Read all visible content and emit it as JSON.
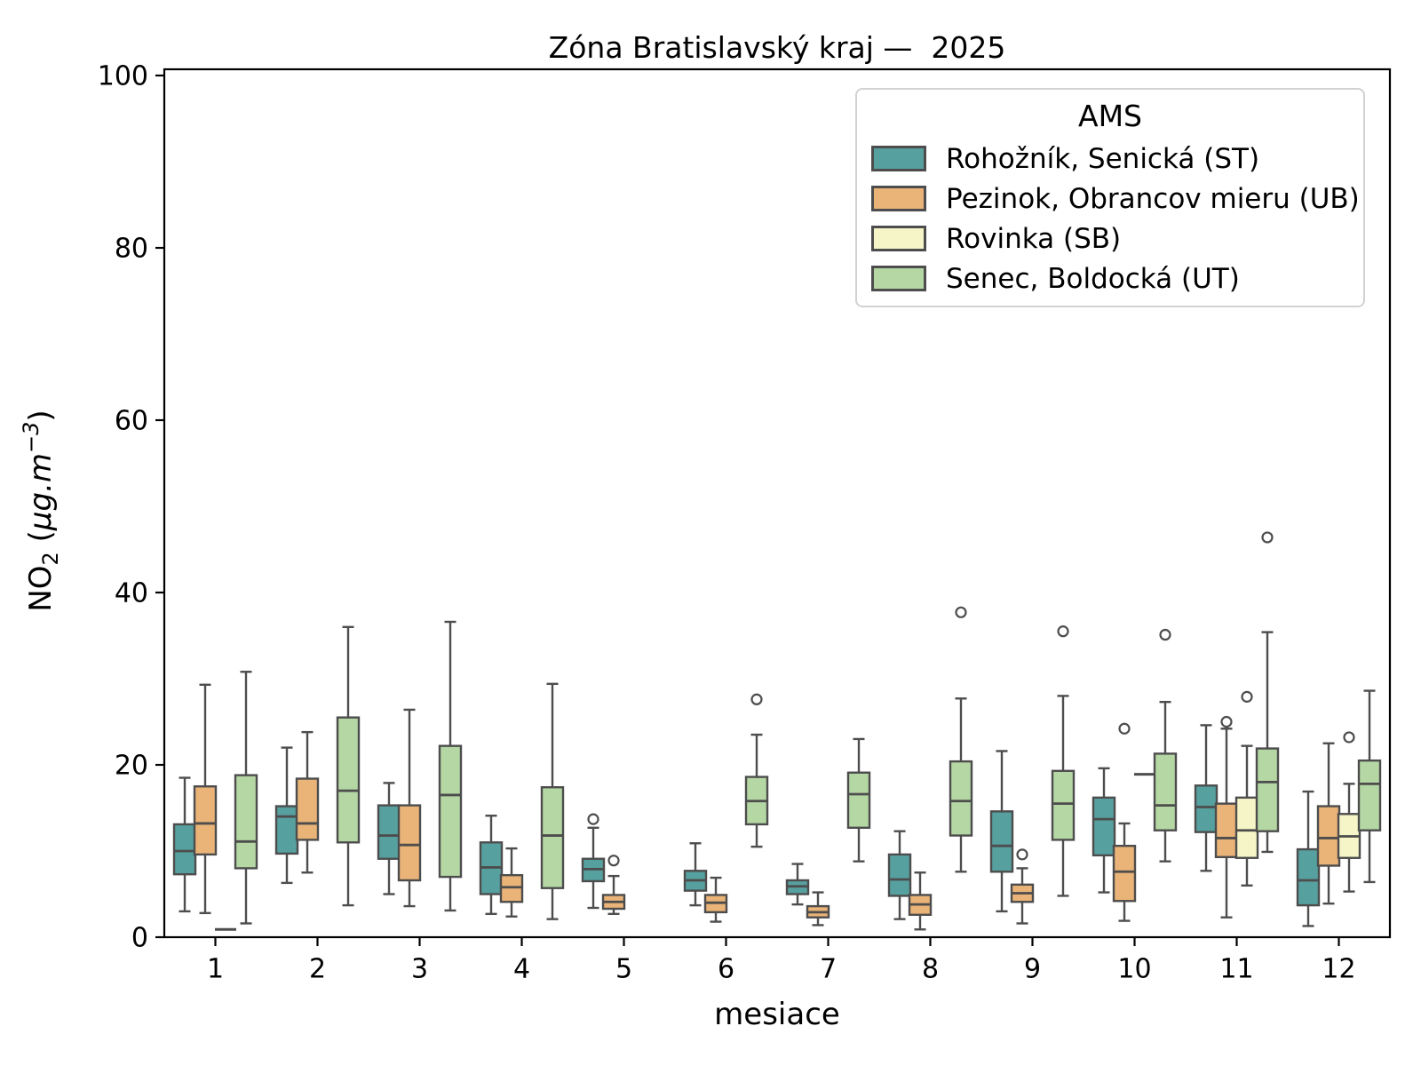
{
  "chart_data": {
    "type": "boxplot",
    "title": "Zóna Bratislavský kraj —  2025",
    "xlabel": "mesiace",
    "ylabel": "NO₂  (μg.m⁻³)",
    "ylabel_parts": {
      "prefix": "NO",
      "sub": "2",
      "open": "  (",
      "unit": "μg.m",
      "sup": "−3",
      "close": ")"
    },
    "ylim": [
      0,
      100
    ],
    "yticks": [
      0,
      20,
      40,
      60,
      80,
      100
    ],
    "categories": [
      "1",
      "2",
      "3",
      "4",
      "5",
      "6",
      "7",
      "8",
      "9",
      "10",
      "11",
      "12"
    ],
    "grid": false,
    "legend": {
      "title": "AMS",
      "position": "upper right"
    },
    "edge_color": "#4d4d4d",
    "series": [
      {
        "name": "Rohožník, Senická (ST)",
        "color": "#57a0a0",
        "boxes": [
          {
            "month": 1,
            "whislo": 3.0,
            "q1": 7.3,
            "med": 10.0,
            "q3": 13.1,
            "whishi": 18.5,
            "fliers": []
          },
          {
            "month": 2,
            "whislo": 6.3,
            "q1": 9.7,
            "med": 14.0,
            "q3": 15.2,
            "whishi": 22.0,
            "fliers": []
          },
          {
            "month": 3,
            "whislo": 5.0,
            "q1": 9.1,
            "med": 11.8,
            "q3": 15.3,
            "whishi": 17.9,
            "fliers": []
          },
          {
            "month": 4,
            "whislo": 2.7,
            "q1": 5.0,
            "med": 8.1,
            "q3": 11.0,
            "whishi": 14.1,
            "fliers": []
          },
          {
            "month": 5,
            "whislo": 3.4,
            "q1": 6.5,
            "med": 7.9,
            "q3": 9.1,
            "whishi": 12.7,
            "fliers": [
              13.7
            ]
          },
          {
            "month": 6,
            "whislo": 3.7,
            "q1": 5.4,
            "med": 6.6,
            "q3": 7.7,
            "whishi": 10.9,
            "fliers": []
          },
          {
            "month": 7,
            "whislo": 3.8,
            "q1": 5.0,
            "med": 5.9,
            "q3": 6.6,
            "whishi": 8.5,
            "fliers": []
          },
          {
            "month": 8,
            "whislo": 2.1,
            "q1": 4.8,
            "med": 6.7,
            "q3": 9.6,
            "whishi": 12.3,
            "fliers": []
          },
          {
            "month": 9,
            "whislo": 3.0,
            "q1": 7.6,
            "med": 10.6,
            "q3": 14.6,
            "whishi": 21.6,
            "fliers": []
          },
          {
            "month": 10,
            "whislo": 5.2,
            "q1": 9.5,
            "med": 13.7,
            "q3": 16.2,
            "whishi": 19.6,
            "fliers": []
          },
          {
            "month": 11,
            "whislo": 7.7,
            "q1": 12.2,
            "med": 15.1,
            "q3": 17.6,
            "whishi": 24.6,
            "fliers": []
          },
          {
            "month": 12,
            "whislo": 1.3,
            "q1": 3.7,
            "med": 6.6,
            "q3": 10.2,
            "whishi": 16.9,
            "fliers": []
          }
        ]
      },
      {
        "name": "Pezinok, Obrancov mieru (UB)",
        "color": "#eab377",
        "boxes": [
          {
            "month": 1,
            "whislo": 2.8,
            "q1": 9.6,
            "med": 13.2,
            "q3": 17.5,
            "whishi": 29.3,
            "fliers": []
          },
          {
            "month": 2,
            "whislo": 7.5,
            "q1": 11.3,
            "med": 13.2,
            "q3": 18.4,
            "whishi": 23.8,
            "fliers": []
          },
          {
            "month": 3,
            "whislo": 3.6,
            "q1": 6.6,
            "med": 10.7,
            "q3": 15.3,
            "whishi": 26.4,
            "fliers": []
          },
          {
            "month": 4,
            "whislo": 2.4,
            "q1": 4.1,
            "med": 5.8,
            "q3": 7.2,
            "whishi": 10.3,
            "fliers": []
          },
          {
            "month": 5,
            "whislo": 2.7,
            "q1": 3.3,
            "med": 4.1,
            "q3": 4.9,
            "whishi": 7.1,
            "fliers": [
              8.9
            ]
          },
          {
            "month": 6,
            "whislo": 1.8,
            "q1": 2.9,
            "med": 4.0,
            "q3": 4.9,
            "whishi": 6.9,
            "fliers": []
          },
          {
            "month": 7,
            "whislo": 1.4,
            "q1": 2.3,
            "med": 2.9,
            "q3": 3.6,
            "whishi": 5.2,
            "fliers": []
          },
          {
            "month": 8,
            "whislo": 0.9,
            "q1": 2.6,
            "med": 3.8,
            "q3": 4.9,
            "whishi": 7.5,
            "fliers": []
          },
          {
            "month": 9,
            "whislo": 1.6,
            "q1": 4.1,
            "med": 5.1,
            "q3": 6.1,
            "whishi": 8.0,
            "fliers": [
              9.6
            ]
          },
          {
            "month": 10,
            "whislo": 1.9,
            "q1": 4.2,
            "med": 7.6,
            "q3": 10.6,
            "whishi": 13.2,
            "fliers": [
              24.2
            ]
          },
          {
            "month": 11,
            "whislo": 2.3,
            "q1": 9.3,
            "med": 11.5,
            "q3": 15.5,
            "whishi": 24.2,
            "fliers": [
              25.0
            ]
          },
          {
            "month": 12,
            "whislo": 3.9,
            "q1": 8.3,
            "med": 11.5,
            "q3": 15.2,
            "whishi": 22.5,
            "fliers": []
          }
        ]
      },
      {
        "name": "Rovinka (SB)",
        "color": "#f5f5c8",
        "boxes": [
          {
            "month": 1,
            "whislo": 0.9,
            "q1": 0.9,
            "med": 0.9,
            "q3": 0.9,
            "whishi": 0.9,
            "fliers": []
          },
          {
            "month": 10,
            "whislo": 18.9,
            "q1": 18.9,
            "med": 18.9,
            "q3": 18.9,
            "whishi": 18.9,
            "fliers": []
          },
          {
            "month": 11,
            "whislo": 6.0,
            "q1": 9.2,
            "med": 12.4,
            "q3": 16.2,
            "whishi": 22.2,
            "fliers": [
              27.9
            ]
          },
          {
            "month": 12,
            "whislo": 5.3,
            "q1": 9.2,
            "med": 11.7,
            "q3": 14.3,
            "whishi": 17.8,
            "fliers": [
              23.2
            ]
          }
        ]
      },
      {
        "name": "Senec, Boldocká (UT)",
        "color": "#b5d7a4",
        "boxes": [
          {
            "month": 1,
            "whislo": 1.6,
            "q1": 8.0,
            "med": 11.1,
            "q3": 18.8,
            "whishi": 30.8,
            "fliers": []
          },
          {
            "month": 2,
            "whislo": 3.7,
            "q1": 11.0,
            "med": 17.0,
            "q3": 25.5,
            "whishi": 36.0,
            "fliers": []
          },
          {
            "month": 3,
            "whislo": 3.1,
            "q1": 7.0,
            "med": 16.5,
            "q3": 22.2,
            "whishi": 36.6,
            "fliers": []
          },
          {
            "month": 4,
            "whislo": 2.1,
            "q1": 5.7,
            "med": 11.8,
            "q3": 17.4,
            "whishi": 29.4,
            "fliers": []
          },
          {
            "month": 6,
            "whislo": 10.5,
            "q1": 13.1,
            "med": 15.8,
            "q3": 18.6,
            "whishi": 23.5,
            "fliers": [
              27.6
            ]
          },
          {
            "month": 7,
            "whislo": 8.8,
            "q1": 12.7,
            "med": 16.6,
            "q3": 19.1,
            "whishi": 23.0,
            "fliers": []
          },
          {
            "month": 8,
            "whislo": 7.6,
            "q1": 11.8,
            "med": 15.8,
            "q3": 20.4,
            "whishi": 27.7,
            "fliers": [
              37.7
            ]
          },
          {
            "month": 9,
            "whislo": 4.8,
            "q1": 11.3,
            "med": 15.5,
            "q3": 19.3,
            "whishi": 28.0,
            "fliers": [
              35.5
            ]
          },
          {
            "month": 10,
            "whislo": 8.8,
            "q1": 12.4,
            "med": 15.3,
            "q3": 21.3,
            "whishi": 27.3,
            "fliers": [
              35.1
            ]
          },
          {
            "month": 11,
            "whislo": 9.9,
            "q1": 12.3,
            "med": 18.0,
            "q3": 21.9,
            "whishi": 35.4,
            "fliers": [
              46.4
            ]
          },
          {
            "month": 12,
            "whislo": 6.4,
            "q1": 12.4,
            "med": 17.8,
            "q3": 20.5,
            "whishi": 28.6,
            "fliers": []
          }
        ]
      }
    ]
  }
}
